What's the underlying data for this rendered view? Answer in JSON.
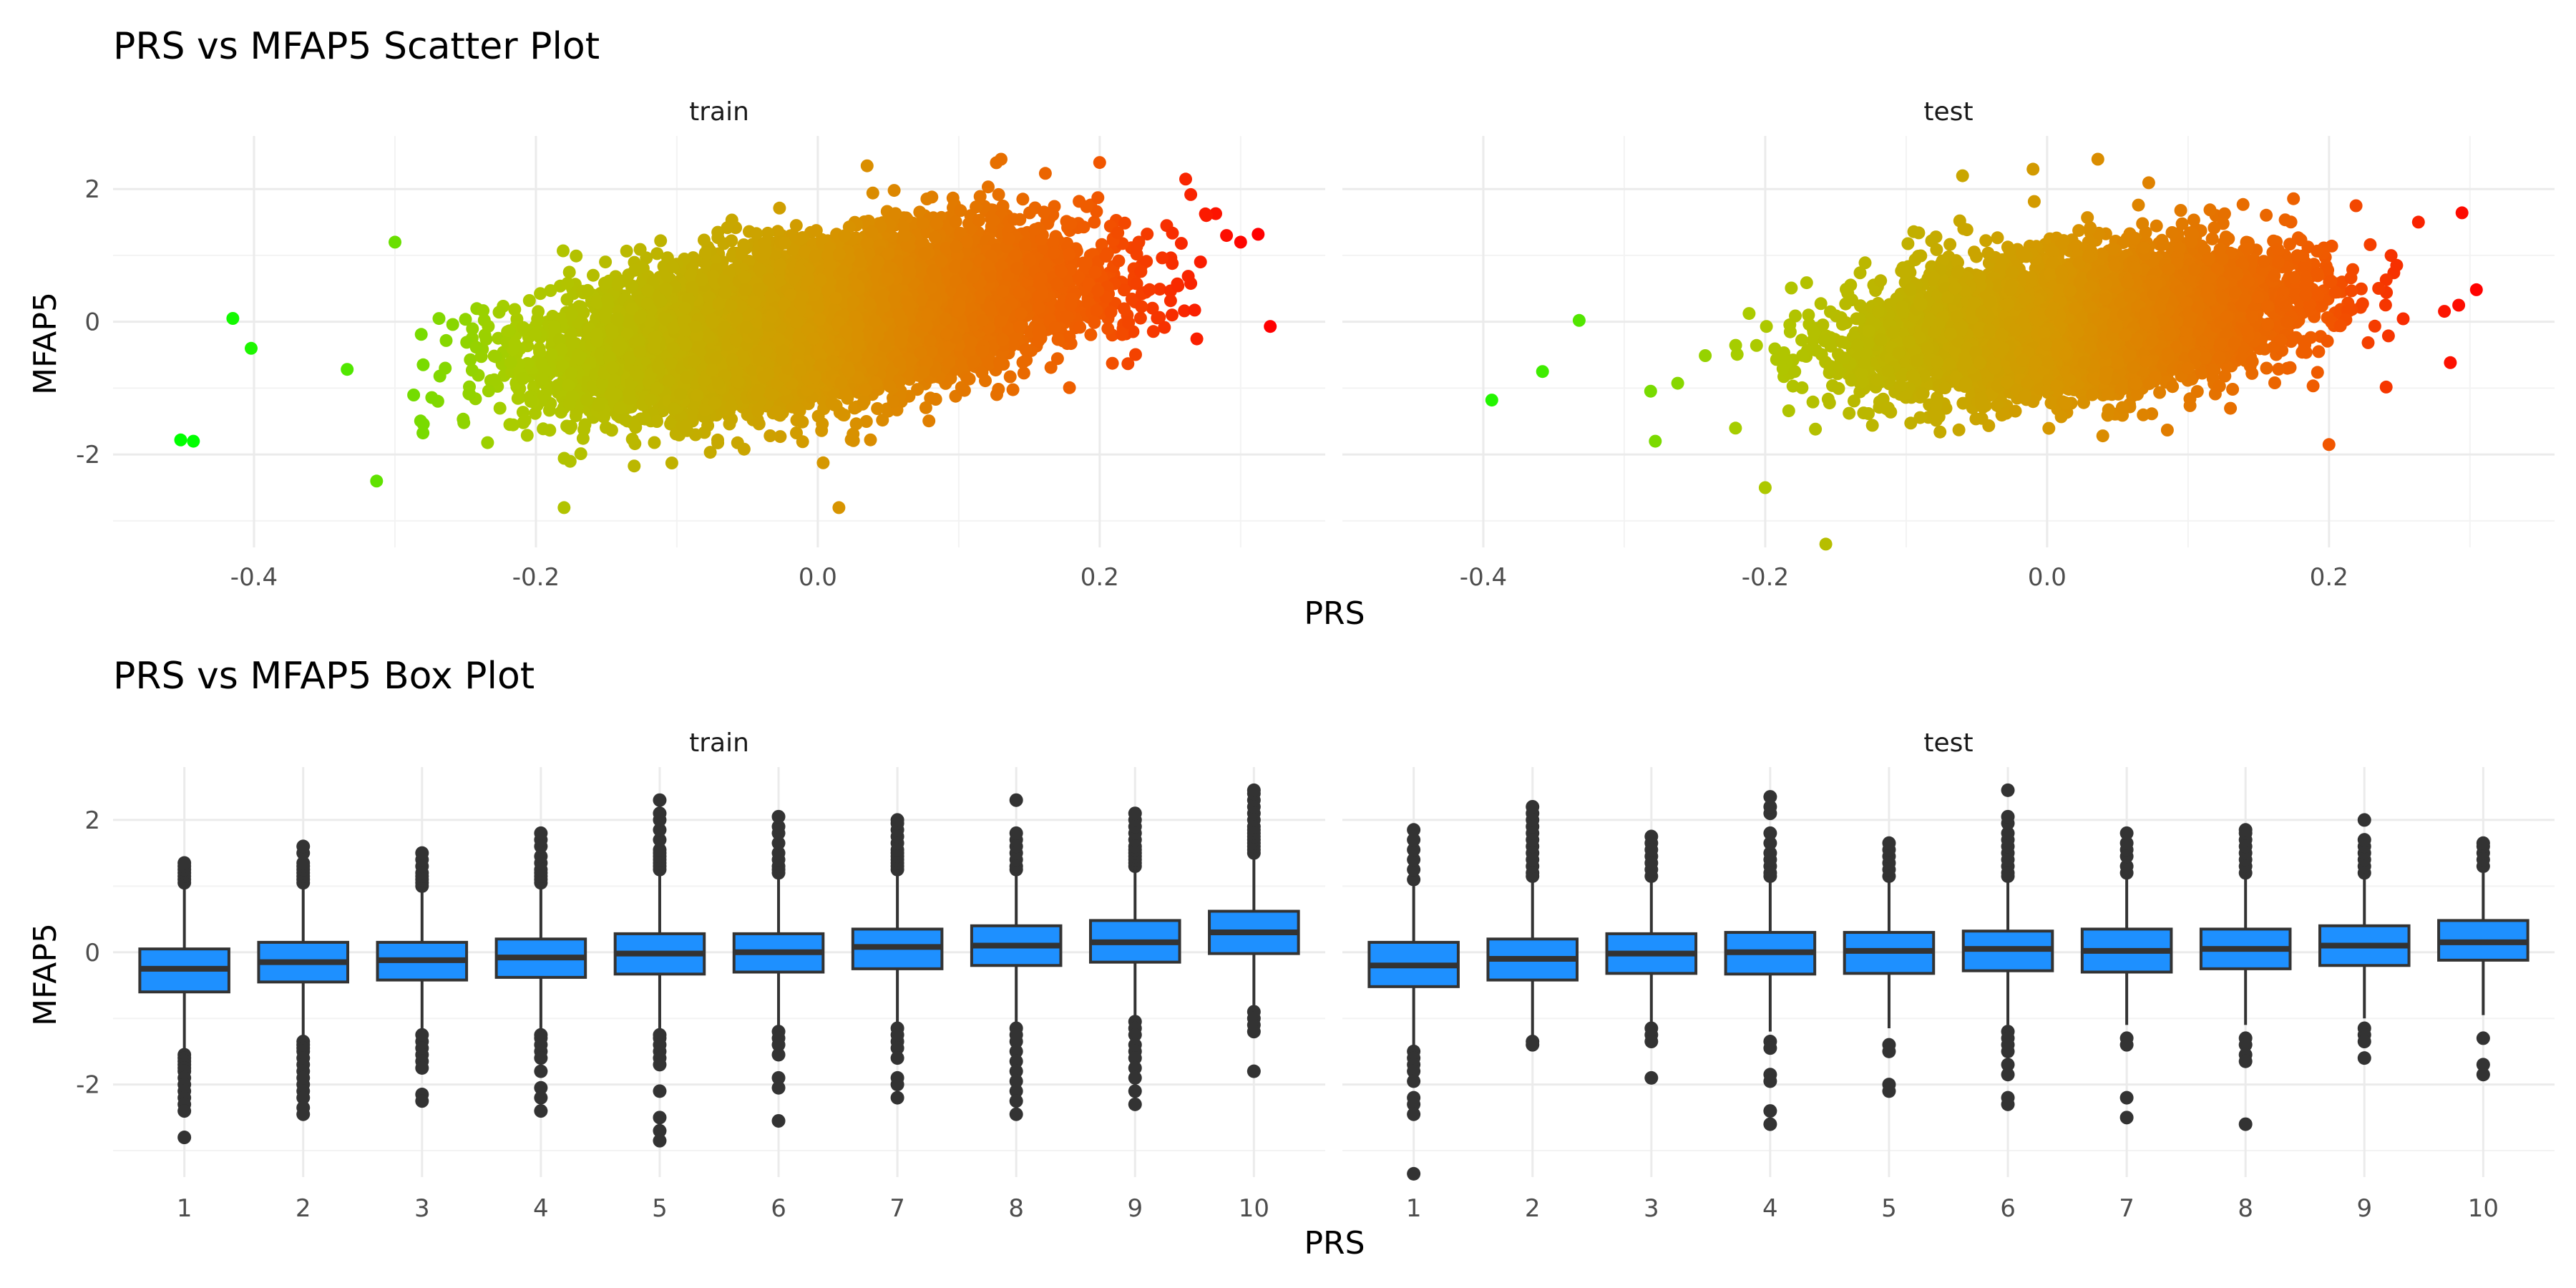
{
  "scatter_section": {
    "title": "PRS vs MFAP5 Scatter Plot",
    "xlabel": "PRS",
    "ylabel": "MFAP5"
  },
  "box_section": {
    "title": "PRS vs MFAP5 Box Plot",
    "xlabel": "PRS",
    "ylabel": "MFAP5"
  },
  "colors": {
    "gradient_low": "#00ff00",
    "gradient_high": "#ff0000",
    "box_fill": "#1e90ff",
    "box_line": "#333333",
    "outlier": "#333333"
  },
  "chart_data": [
    {
      "type": "scatter",
      "title": "PRS vs MFAP5 Scatter Plot",
      "xlabel": "PRS",
      "ylabel": "MFAP5",
      "facets": [
        "train",
        "test"
      ],
      "xlim": [
        -0.5,
        0.36
      ],
      "ylim": [
        -3.4,
        2.8
      ],
      "x_ticks": [
        -0.4,
        -0.2,
        0.0,
        0.2
      ],
      "x_tick_labels": [
        "-0.4",
        "-0.2",
        "0.0",
        "0.2"
      ],
      "y_ticks": [
        -2,
        0,
        2
      ],
      "y_tick_labels": [
        "-2",
        "0",
        "2"
      ],
      "grid": true,
      "color_by": "PRS (green to red gradient)",
      "series": [
        {
          "name": "train",
          "point_cloud": {
            "x_mean": 0.0,
            "x_sd": 0.09,
            "slope": 3.0,
            "resid_sd": 0.55,
            "approx_n": 8000
          },
          "points": [
            [
              -0.452,
              -1.78
            ],
            [
              -0.443,
              -1.8
            ],
            [
              -0.415,
              0.05
            ],
            [
              -0.402,
              -0.4
            ],
            [
              -0.3,
              1.2
            ],
            [
              -0.313,
              -2.4
            ],
            [
              -0.18,
              -2.8
            ],
            [
              0.2,
              2.4
            ],
            [
              0.261,
              2.15
            ],
            [
              0.321,
              -0.07
            ],
            [
              0.29,
              1.3
            ],
            [
              0.3,
              1.2
            ],
            [
              0.015,
              -2.8
            ],
            [
              0.13,
              2.45
            ],
            [
              0.035,
              2.35
            ]
          ]
        },
        {
          "name": "test",
          "point_cloud": {
            "x_mean": 0.02,
            "x_sd": 0.075,
            "slope": 2.2,
            "resid_sd": 0.5,
            "approx_n": 6000
          },
          "points": [
            [
              -0.394,
              -1.18
            ],
            [
              -0.358,
              -0.75
            ],
            [
              -0.332,
              0.02
            ],
            [
              -0.278,
              -1.8
            ],
            [
              -0.2,
              -2.5
            ],
            [
              -0.157,
              -3.35
            ],
            [
              -0.01,
              2.3
            ],
            [
              0.036,
              2.45
            ],
            [
              0.292,
              0.25
            ],
            [
              0.2,
              -1.85
            ],
            [
              0.248,
              0.85
            ],
            [
              -0.06,
              2.2
            ]
          ]
        }
      ]
    },
    {
      "type": "box",
      "title": "PRS vs MFAP5 Box Plot",
      "xlabel": "PRS",
      "ylabel": "MFAP5",
      "facets": [
        "train",
        "test"
      ],
      "categories": [
        "1",
        "2",
        "3",
        "4",
        "5",
        "6",
        "7",
        "8",
        "9",
        "10"
      ],
      "ylim": [
        -3.4,
        2.8
      ],
      "y_ticks": [
        -2,
        0,
        2
      ],
      "y_tick_labels": [
        "-2",
        "0",
        "2"
      ],
      "grid": true,
      "series": [
        {
          "name": "train",
          "boxes": [
            {
              "q1": -0.6,
              "median": -0.25,
              "q3": 0.05,
              "whisker_low": -1.5,
              "whisker_high": 1.0,
              "outliers": [
                1.05,
                1.1,
                1.15,
                1.2,
                1.25,
                1.3,
                1.35,
                -1.55,
                -1.6,
                -1.65,
                -1.7,
                -1.75,
                -1.8,
                -1.9,
                -2.0,
                -2.1,
                -2.2,
                -2.3,
                -2.4,
                -2.8
              ]
            },
            {
              "q1": -0.45,
              "median": -0.15,
              "q3": 0.15,
              "whisker_low": -1.3,
              "whisker_high": 1.0,
              "outliers": [
                1.05,
                1.1,
                1.15,
                1.2,
                1.25,
                1.3,
                1.35,
                1.5,
                1.6,
                -1.35,
                -1.4,
                -1.45,
                -1.5,
                -1.6,
                -1.7,
                -1.8,
                -1.9,
                -2.0,
                -2.1,
                -2.2,
                -2.35,
                -2.45
              ]
            },
            {
              "q1": -0.42,
              "median": -0.12,
              "q3": 0.15,
              "whisker_low": -1.2,
              "whisker_high": 0.95,
              "outliers": [
                1.0,
                1.05,
                1.1,
                1.15,
                1.2,
                1.3,
                1.4,
                1.5,
                -1.25,
                -1.35,
                -1.45,
                -1.55,
                -1.65,
                -1.75,
                -2.15,
                -2.25
              ]
            },
            {
              "q1": -0.38,
              "median": -0.08,
              "q3": 0.2,
              "whisker_low": -1.2,
              "whisker_high": 1.0,
              "outliers": [
                1.05,
                1.1,
                1.15,
                1.2,
                1.25,
                1.35,
                1.45,
                1.6,
                1.7,
                1.8,
                -1.25,
                -1.3,
                -1.4,
                -1.5,
                -1.6,
                -1.8,
                -2.05,
                -2.2,
                -2.4
              ]
            },
            {
              "q1": -0.33,
              "median": -0.02,
              "q3": 0.28,
              "whisker_low": -1.2,
              "whisker_high": 1.2,
              "outliers": [
                1.25,
                1.3,
                1.35,
                1.4,
                1.45,
                1.5,
                1.55,
                1.7,
                1.85,
                2.0,
                2.1,
                2.3,
                -1.25,
                -1.3,
                -1.4,
                -1.5,
                -1.6,
                -1.7,
                -2.1,
                -2.5,
                -2.7,
                -2.85
              ]
            },
            {
              "q1": -0.3,
              "median": 0.0,
              "q3": 0.28,
              "whisker_low": -1.15,
              "whisker_high": 1.15,
              "outliers": [
                1.2,
                1.25,
                1.3,
                1.4,
                1.5,
                1.65,
                1.8,
                1.9,
                2.05,
                -1.2,
                -1.3,
                -1.4,
                -1.55,
                -1.9,
                -2.05,
                -2.55
              ]
            },
            {
              "q1": -0.25,
              "median": 0.08,
              "q3": 0.35,
              "whisker_low": -1.1,
              "whisker_high": 1.2,
              "outliers": [
                1.25,
                1.3,
                1.35,
                1.4,
                1.45,
                1.5,
                1.55,
                1.65,
                1.75,
                1.85,
                1.95,
                2.0,
                -1.15,
                -1.25,
                -1.35,
                -1.45,
                -1.6,
                -1.9,
                -2.0,
                -2.2
              ]
            },
            {
              "q1": -0.2,
              "median": 0.1,
              "q3": 0.4,
              "whisker_low": -1.1,
              "whisker_high": 1.2,
              "outliers": [
                1.25,
                1.3,
                1.4,
                1.5,
                1.6,
                1.7,
                1.8,
                2.3,
                -1.15,
                -1.25,
                -1.35,
                -1.5,
                -1.65,
                -1.8,
                -1.95,
                -2.1,
                -2.25,
                -2.45
              ]
            },
            {
              "q1": -0.15,
              "median": 0.15,
              "q3": 0.48,
              "whisker_low": -1.0,
              "whisker_high": 1.25,
              "outliers": [
                1.3,
                1.35,
                1.4,
                1.45,
                1.5,
                1.55,
                1.6,
                1.7,
                1.8,
                1.9,
                2.0,
                2.1,
                -1.05,
                -1.15,
                -1.25,
                -1.4,
                -1.5,
                -1.6,
                -1.75,
                -1.9,
                -2.1,
                -2.3
              ]
            },
            {
              "q1": -0.02,
              "median": 0.3,
              "q3": 0.62,
              "whisker_low": -0.8,
              "whisker_high": 1.45,
              "outliers": [
                1.5,
                1.55,
                1.6,
                1.65,
                1.7,
                1.75,
                1.8,
                1.85,
                1.9,
                2.0,
                2.1,
                2.2,
                2.3,
                2.4,
                2.45,
                -0.9,
                -1.0,
                -1.1,
                -1.2,
                -1.8
              ]
            }
          ]
        },
        {
          "name": "test",
          "boxes": [
            {
              "q1": -0.52,
              "median": -0.2,
              "q3": 0.15,
              "whisker_low": -1.45,
              "whisker_high": 1.0,
              "outliers": [
                1.1,
                1.25,
                1.4,
                1.55,
                1.7,
                1.85,
                -1.5,
                -1.6,
                -1.7,
                -1.8,
                -1.95,
                -2.2,
                -2.3,
                -2.45,
                -3.35
              ]
            },
            {
              "q1": -0.42,
              "median": -0.1,
              "q3": 0.2,
              "whisker_low": -1.3,
              "whisker_high": 1.1,
              "outliers": [
                1.15,
                1.2,
                1.3,
                1.4,
                1.5,
                1.6,
                1.7,
                1.8,
                1.9,
                2.0,
                2.1,
                2.2,
                -1.35,
                -1.4
              ]
            },
            {
              "q1": -0.32,
              "median": -0.02,
              "q3": 0.28,
              "whisker_low": -1.1,
              "whisker_high": 1.1,
              "outliers": [
                1.15,
                1.25,
                1.35,
                1.45,
                1.55,
                1.65,
                1.75,
                -1.15,
                -1.25,
                -1.35,
                -1.9
              ]
            },
            {
              "q1": -0.33,
              "median": 0.0,
              "q3": 0.3,
              "whisker_low": -1.2,
              "whisker_high": 1.1,
              "outliers": [
                1.15,
                1.2,
                1.3,
                1.4,
                1.5,
                1.65,
                1.8,
                2.1,
                2.2,
                2.35,
                -1.35,
                -1.45,
                -1.85,
                -1.95,
                -2.4,
                -2.6
              ]
            },
            {
              "q1": -0.32,
              "median": 0.02,
              "q3": 0.3,
              "whisker_low": -1.15,
              "whisker_high": 1.1,
              "outliers": [
                1.15,
                1.25,
                1.35,
                1.45,
                1.55,
                1.65,
                -1.4,
                -1.5,
                -2.0,
                -2.1
              ]
            },
            {
              "q1": -0.28,
              "median": 0.05,
              "q3": 0.32,
              "whisker_low": -1.1,
              "whisker_high": 1.1,
              "outliers": [
                1.15,
                1.2,
                1.3,
                1.4,
                1.5,
                1.6,
                1.7,
                1.8,
                1.95,
                2.05,
                2.45,
                -1.2,
                -1.3,
                -1.4,
                -1.5,
                -1.7,
                -1.85,
                -2.2,
                -2.3
              ]
            },
            {
              "q1": -0.3,
              "median": 0.02,
              "q3": 0.35,
              "whisker_low": -1.1,
              "whisker_high": 1.15,
              "outliers": [
                1.2,
                1.3,
                1.45,
                1.55,
                1.65,
                1.8,
                -1.3,
                -1.4,
                -2.2,
                -2.5
              ]
            },
            {
              "q1": -0.25,
              "median": 0.05,
              "q3": 0.35,
              "whisker_low": -1.1,
              "whisker_high": 1.15,
              "outliers": [
                1.2,
                1.3,
                1.4,
                1.5,
                1.6,
                1.7,
                1.8,
                1.85,
                -1.3,
                -1.4,
                -1.55,
                -1.65,
                -2.6
              ]
            },
            {
              "q1": -0.2,
              "median": 0.1,
              "q3": 0.4,
              "whisker_low": -1.0,
              "whisker_high": 1.15,
              "outliers": [
                1.2,
                1.3,
                1.4,
                1.5,
                1.6,
                1.7,
                2.0,
                -1.15,
                -1.25,
                -1.35,
                -1.6
              ]
            },
            {
              "q1": -0.12,
              "median": 0.15,
              "q3": 0.48,
              "whisker_low": -0.95,
              "whisker_high": 1.2,
              "outliers": [
                1.3,
                1.4,
                1.5,
                1.6,
                1.65,
                -1.3,
                -1.7,
                -1.85
              ]
            }
          ]
        }
      ]
    }
  ]
}
